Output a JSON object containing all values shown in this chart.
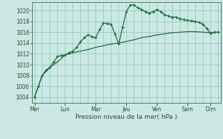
{
  "xlabel": "Pression niveau de la mer( hPa )",
  "bg_color": "#cce8e4",
  "grid_color": "#99ccca",
  "line_color": "#1a6b30",
  "ylim": [
    1003.0,
    1021.5
  ],
  "yticks": [
    1004,
    1006,
    1008,
    1010,
    1012,
    1014,
    1016,
    1018,
    1020
  ],
  "day_labels": [
    "Mer",
    "Lun",
    "Mar",
    "Jeu",
    "Ven",
    "Sam",
    "Dim"
  ],
  "day_positions": [
    0,
    4,
    8,
    12,
    16,
    20,
    23
  ],
  "xlim": [
    -0.3,
    24.3
  ],
  "series1_x": [
    0,
    0.5,
    1,
    1.5,
    2,
    2.5,
    3,
    3.5,
    4,
    4.5,
    5,
    5.5,
    6,
    6.5,
    7,
    7.5,
    8,
    8.5,
    9,
    9.5,
    10,
    10.5,
    11,
    11.5,
    12,
    12.5,
    13,
    13.5,
    14,
    14.5,
    15,
    15.5,
    16,
    16.5,
    17,
    17.5,
    18,
    18.5,
    19,
    19.5,
    20,
    20.5,
    21,
    21.5,
    22,
    22.5,
    23,
    23.5,
    24
  ],
  "series1_y": [
    1004,
    1006,
    1008,
    1009,
    1009.5,
    1010.5,
    1011.5,
    1011.7,
    1011.8,
    1012.2,
    1012.5,
    1013.2,
    1014.2,
    1015.0,
    1015.5,
    1015.2,
    1015.0,
    1016.5,
    1017.7,
    1017.6,
    1017.5,
    1015.7,
    1013.8,
    1016.9,
    1019.8,
    1021.0,
    1021.0,
    1020.5,
    1020.2,
    1019.8,
    1019.5,
    1019.8,
    1020.2,
    1019.8,
    1019.2,
    1019.0,
    1018.8,
    1018.8,
    1018.5,
    1018.3,
    1018.2,
    1018.1,
    1018.0,
    1017.8,
    1017.5,
    1016.7,
    1015.8,
    1016.0,
    1016.0
  ],
  "series2_x": [
    0,
    1,
    2,
    3,
    4,
    5,
    6,
    7,
    8,
    9,
    10,
    11,
    12,
    13,
    14,
    15,
    16,
    17,
    18,
    19,
    20,
    21,
    22,
    23,
    24
  ],
  "series2_y": [
    1004,
    1008,
    1009.5,
    1010.5,
    1011.8,
    1012.2,
    1012.5,
    1012.8,
    1013.2,
    1013.5,
    1013.8,
    1014.0,
    1014.3,
    1014.6,
    1015.0,
    1015.2,
    1015.5,
    1015.7,
    1015.9,
    1016.0,
    1016.1,
    1016.1,
    1016.0,
    1015.9,
    1016.0
  ]
}
